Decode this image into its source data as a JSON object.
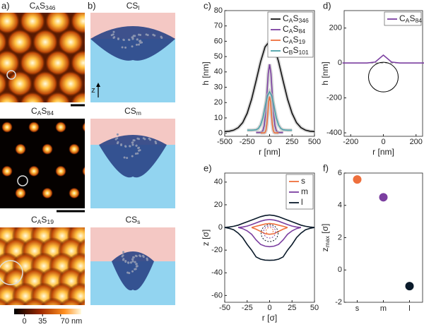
{
  "figure": {
    "panel_labels": [
      "a)",
      "b)"
    ],
    "afm_titles": [
      "CAS346",
      "CAS84",
      "CAS19"
    ],
    "sim_titles": [
      "CSl",
      "CSm",
      "CSs"
    ],
    "z_axis": "z",
    "colorbar": {
      "lim": [
        -20,
        110
      ],
      "ticks": [
        0,
        35,
        {
          "value": 70,
          "label": "70 nm"
        }
      ]
    }
  },
  "chart_data": [
    {
      "type": "line",
      "panel": "c)",
      "ylabel": "h [nm]",
      "xlabel": "r [nm]",
      "xlim": [
        -500,
        500
      ],
      "xticks": [
        -500,
        -250,
        0,
        250,
        500
      ],
      "ylim": [
        -2,
        80
      ],
      "yticks": [
        0,
        10,
        20,
        30,
        40,
        50,
        60,
        70,
        80
      ],
      "legend": "upper right",
      "series": [
        {
          "name": "CAS346",
          "color": "#111111",
          "x": [
            -500,
            -450,
            -400,
            -350,
            -300,
            -250,
            -200,
            -150,
            -100,
            -50,
            0,
            50,
            100,
            150,
            200,
            250,
            300,
            350,
            400,
            450,
            500
          ],
          "values": [
            1.1,
            1.3,
            2.0,
            3.6,
            6.9,
            13.0,
            22.3,
            34.2,
            46.7,
            56.3,
            60,
            56.3,
            46.7,
            34.2,
            22.3,
            13.0,
            6.9,
            3.6,
            2.0,
            1.3,
            1.1
          ]
        },
        {
          "name": "CAS84",
          "color": "#7b3fa0",
          "x": [
            -150,
            -135,
            -120,
            -105,
            -90,
            -75,
            -60,
            -45,
            -30,
            -15,
            0,
            15,
            30,
            45,
            60,
            75,
            90,
            105,
            120,
            135,
            150
          ],
          "values": [
            0.5,
            0.5,
            0.5,
            0.5,
            0.8,
            1.7,
            5.0,
            12.7,
            25.6,
            39.0,
            45,
            39.0,
            25.6,
            12.7,
            5.0,
            1.7,
            0.8,
            0.5,
            0.5,
            0.5,
            0.5
          ]
        },
        {
          "name": "CAS19",
          "color": "#ee6f3c",
          "x": [
            -100,
            -90,
            -80,
            -70,
            -60,
            -50,
            -40,
            -30,
            -20,
            -10,
            0,
            10,
            20,
            30,
            40,
            50,
            60,
            70,
            80,
            90,
            100
          ],
          "values": [
            0.2,
            0.2,
            0.2,
            0.2,
            0.2,
            0.5,
            2.0,
            6.0,
            13.0,
            20.6,
            24,
            20.6,
            13.0,
            6.0,
            2.0,
            0.5,
            0.2,
            0.2,
            0.2,
            0.2,
            0.2
          ]
        },
        {
          "name": "CBS101",
          "color": "#4aa0a8",
          "x": [
            -250,
            -225,
            -200,
            -175,
            -150,
            -125,
            -100,
            -75,
            -50,
            -25,
            0,
            25,
            50,
            75,
            100,
            125,
            150,
            175,
            200,
            225,
            250
          ],
          "values": [
            2.0,
            2.0,
            2.0,
            2.1,
            2.3,
            3.1,
            5.4,
            10.1,
            17.2,
            24.1,
            27,
            24.1,
            17.2,
            10.1,
            5.4,
            3.1,
            2.3,
            2.1,
            2.0,
            2.0,
            2.0
          ]
        }
      ]
    },
    {
      "type": "line",
      "panel": "d)",
      "ylabel": "h [nm]",
      "xlabel": "r [nm]",
      "xlim": [
        -240,
        240
      ],
      "xticks": [
        -200,
        0,
        200
      ],
      "ylim": [
        -420,
        300
      ],
      "yticks": [
        -400,
        -200,
        0,
        200
      ],
      "legend": "upper right",
      "series": [
        {
          "name": "CAS84",
          "color": "#7b3fa0",
          "x": [
            -250,
            -200,
            -150,
            -100,
            -50,
            0,
            50,
            100,
            150,
            200,
            250
          ],
          "values": [
            0,
            0,
            0,
            0,
            5,
            45,
            5,
            0,
            0,
            0,
            0
          ]
        }
      ]
    },
    {
      "type": "contour",
      "panel": "e)",
      "ylabel": "z [σ]",
      "xlabel": "r [σ]",
      "xlim": [
        -50,
        50
      ],
      "xticks": [
        -50,
        -25,
        0,
        25,
        50
      ],
      "ylim": [
        -66,
        48
      ],
      "yticks": [
        -60,
        -40,
        -20,
        0,
        20,
        40
      ],
      "legend": "upper right",
      "series": [
        {
          "name": "s",
          "color": "#ee6f3c",
          "x": [
            -20,
            -15,
            -10,
            -5,
            0,
            5,
            10,
            15,
            20
          ],
          "values": [
            0,
            1,
            2,
            3,
            3.5,
            3,
            2,
            1,
            0
          ],
          "lower_values": [
            0,
            -1.5,
            -3.5,
            -5.5,
            -6,
            -5.5,
            -3.5,
            -1.5,
            0
          ]
        },
        {
          "name": "m",
          "color": "#7b3fa0",
          "x": [
            -35,
            -30,
            -25,
            -20,
            -15,
            -10,
            -5,
            0,
            5,
            10,
            15,
            20,
            25,
            30,
            35
          ],
          "values": [
            0,
            0.4,
            1.2,
            2.5,
            4,
            5.5,
            6.5,
            7,
            6.5,
            5.5,
            4,
            2.5,
            1.2,
            0.4,
            0
          ],
          "lower_values": [
            0,
            -1,
            -3,
            -6,
            -11,
            -15,
            -16.5,
            -17,
            -16.5,
            -15,
            -11,
            -6,
            -3,
            -1,
            0
          ]
        },
        {
          "name": "l",
          "color": "#0a1a2a",
          "x": [
            -50,
            -45,
            -40,
            -35,
            -30,
            -25,
            -20,
            -15,
            -10,
            -5,
            0,
            5,
            10,
            15,
            20,
            25,
            30,
            35,
            40,
            45,
            50
          ],
          "values": [
            0,
            0.4,
            1,
            2,
            3.5,
            5,
            6.5,
            8,
            9.5,
            10.5,
            11,
            10.5,
            9.5,
            8,
            6.5,
            5,
            3.5,
            2,
            1,
            0.4,
            0
          ],
          "lower_values": [
            0,
            -0.8,
            -2,
            -5,
            -9,
            -15,
            -20,
            -26,
            -28,
            -28.8,
            -29,
            -28.8,
            -28,
            -26,
            -20,
            -15,
            -9,
            -5,
            -2,
            -0.8,
            0
          ]
        }
      ]
    },
    {
      "type": "scatter",
      "panel": "f)",
      "ylabel": "zmax [σ]",
      "categories": [
        "s",
        "m",
        "l"
      ],
      "values": [
        5.6,
        4.5,
        -1.0
      ],
      "colors": [
        "#ee6f3c",
        "#7b3fa0",
        "#0a1a2a"
      ],
      "ylim": [
        -2,
        6
      ],
      "yticks": [
        -2,
        0,
        2,
        4,
        6
      ]
    }
  ]
}
